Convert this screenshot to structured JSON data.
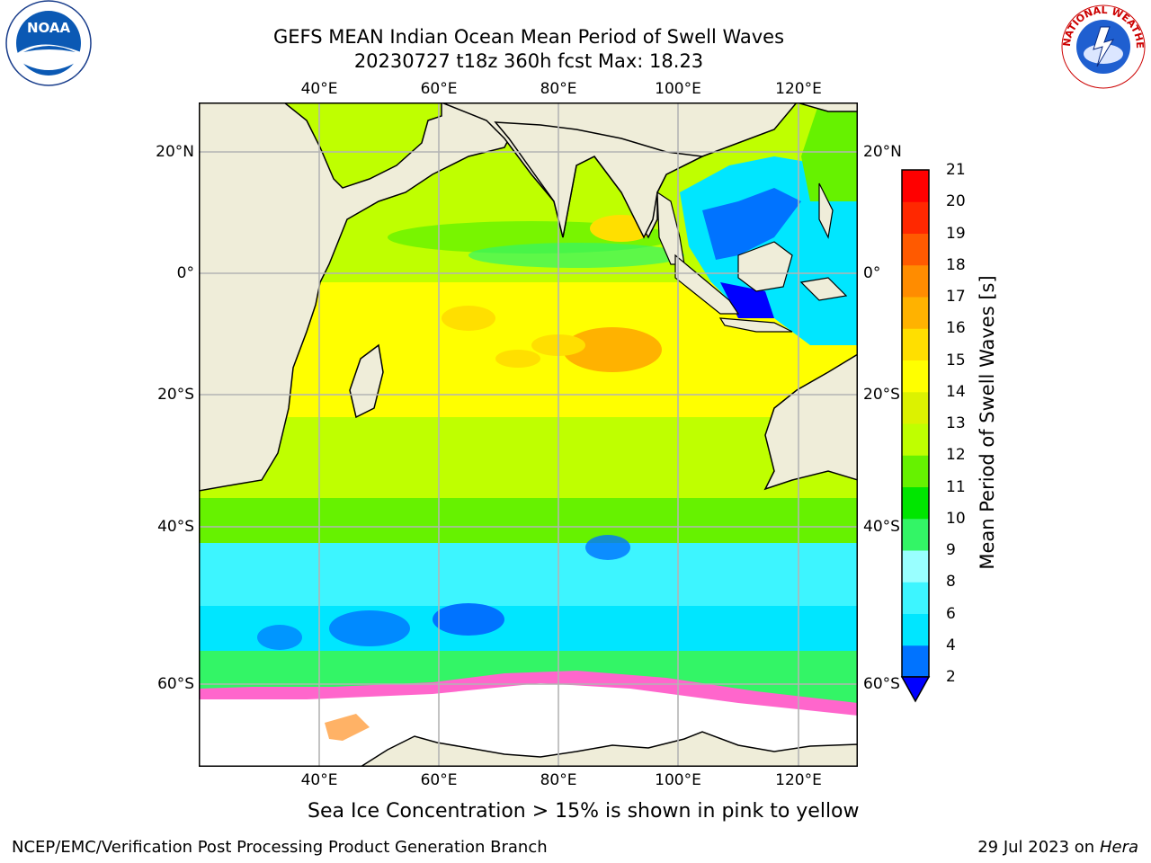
{
  "header": {
    "title_line1": "GEFS MEAN Indian Ocean Mean Period of Swell Waves",
    "title_line2": "20230727 t18z 360h fcst   Max: 18.23"
  },
  "logos": {
    "left_text": "NOAA",
    "right_text": "NATIONAL WEATHER SERVICE"
  },
  "map": {
    "lon_labels": [
      "40°E",
      "60°E",
      "80°E",
      "100°E",
      "120°E"
    ],
    "lat_labels": [
      "20°N",
      "0°",
      "20°S",
      "40°S",
      "60°S"
    ],
    "colors": {
      "land": "#efedd9",
      "ice": "#ffffff",
      "grid": "#b4b4b4"
    }
  },
  "colorbar": {
    "title": "Mean Period of Swell Waves [s]",
    "ticks": [
      "2",
      "4",
      "6",
      "8",
      "9",
      "10",
      "11",
      "12",
      "13",
      "14",
      "15",
      "16",
      "17",
      "18",
      "19",
      "20",
      "21"
    ],
    "colors": [
      "#0000ff",
      "#0073ff",
      "#00e6ff",
      "#3df5ff",
      "#99ffff",
      "#33f566",
      "#00e600",
      "#66f200",
      "#bfff00",
      "#dcf200",
      "#ffff00",
      "#ffdf00",
      "#ffb200",
      "#ff8c00",
      "#ff5a00",
      "#ff2800",
      "#ff0000"
    ]
  },
  "note": "Sea Ice Concentration > 15% is shown in pink to yellow",
  "footer": {
    "left": "NCEP/EMC/Verification Post Processing Product Generation Branch",
    "date": "29 Jul 2023 on ",
    "host": "Hera"
  }
}
